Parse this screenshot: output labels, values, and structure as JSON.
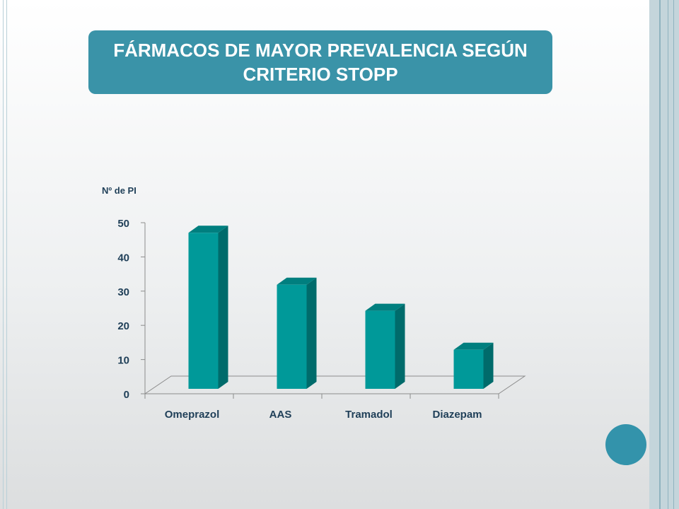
{
  "title": "FÁRMACOS DE MAYOR PREVALENCIA SEGÚN CRITERIO STOPP",
  "colors": {
    "title_bg": "#3a93a8",
    "bar_front": "#009999",
    "bar_side": "#006b6b",
    "bar_top": "#007f7f",
    "accent_circle": "#3393ab"
  },
  "chart_data": {
    "type": "bar",
    "three_d": true,
    "ylabel": "Nº de PI",
    "xlabel": "",
    "categories": [
      "Omeprazol",
      "AAS",
      "Tramadol",
      "Diazepam"
    ],
    "values": [
      48,
      32,
      24,
      12
    ],
    "ylim": [
      0,
      50
    ],
    "yticks": [
      0,
      10,
      20,
      30,
      40,
      50
    ],
    "grid": false,
    "legend": "none"
  }
}
